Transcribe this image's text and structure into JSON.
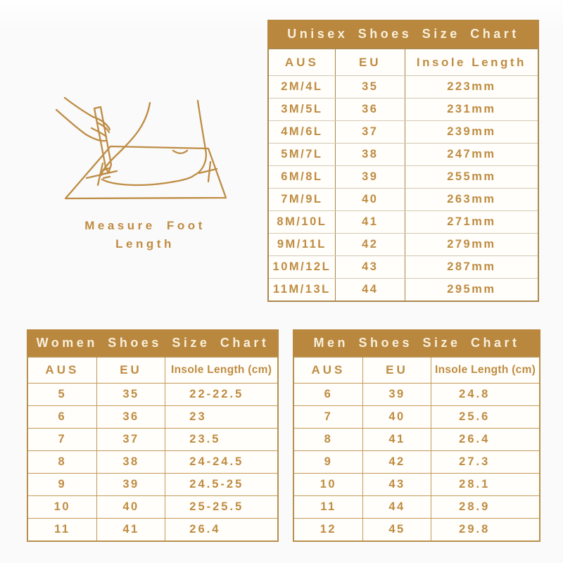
{
  "page": {
    "background": "#fafafa"
  },
  "colors": {
    "header_bar": "#b9873e",
    "header_bar_text": "#f8f0dc",
    "gold_text": "#bf8c42",
    "border_gold": "#c49a58",
    "cell_background": "#fffefa"
  },
  "illustration": {
    "icon": "foot-measure-drawing",
    "caption": [
      "Measure Foot",
      "Length"
    ]
  },
  "chart_data": [
    {
      "id": "unisex",
      "type": "table",
      "title": "Unisex Shoes Size Chart",
      "columns": [
        "AUS",
        "EU",
        "Insole Length"
      ],
      "rows": [
        [
          "2M/4L",
          "35",
          "223mm"
        ],
        [
          "3M/5L",
          "36",
          "231mm"
        ],
        [
          "4M/6L",
          "37",
          "239mm"
        ],
        [
          "5M/7L",
          "38",
          "247mm"
        ],
        [
          "6M/8L",
          "39",
          "255mm"
        ],
        [
          "7M/9L",
          "40",
          "263mm"
        ],
        [
          "8M/10L",
          "41",
          "271mm"
        ],
        [
          "9M/11L",
          "42",
          "279mm"
        ],
        [
          "10M/12L",
          "43",
          "287mm"
        ],
        [
          "11M/13L",
          "44",
          "295mm"
        ]
      ]
    },
    {
      "id": "women",
      "type": "table",
      "title": "Women Shoes Size Chart",
      "columns": [
        "AUS",
        "EU",
        "Insole Length (cm)"
      ],
      "rows": [
        [
          "5",
          "35",
          "22-22.5"
        ],
        [
          "6",
          "36",
          "23"
        ],
        [
          "7",
          "37",
          "23.5"
        ],
        [
          "8",
          "38",
          "24-24.5"
        ],
        [
          "9",
          "39",
          "24.5-25"
        ],
        [
          "10",
          "40",
          "25-25.5"
        ],
        [
          "11",
          "41",
          "26.4"
        ]
      ]
    },
    {
      "id": "men",
      "type": "table",
      "title": "Men Shoes Size Chart",
      "columns": [
        "AUS",
        "EU",
        "Insole Length (cm)"
      ],
      "rows": [
        [
          "6",
          "39",
          "24.8"
        ],
        [
          "7",
          "40",
          "25.6"
        ],
        [
          "8",
          "41",
          "26.4"
        ],
        [
          "9",
          "42",
          "27.3"
        ],
        [
          "10",
          "43",
          "28.1"
        ],
        [
          "11",
          "44",
          "28.9"
        ],
        [
          "12",
          "45",
          "29.8"
        ]
      ]
    }
  ]
}
